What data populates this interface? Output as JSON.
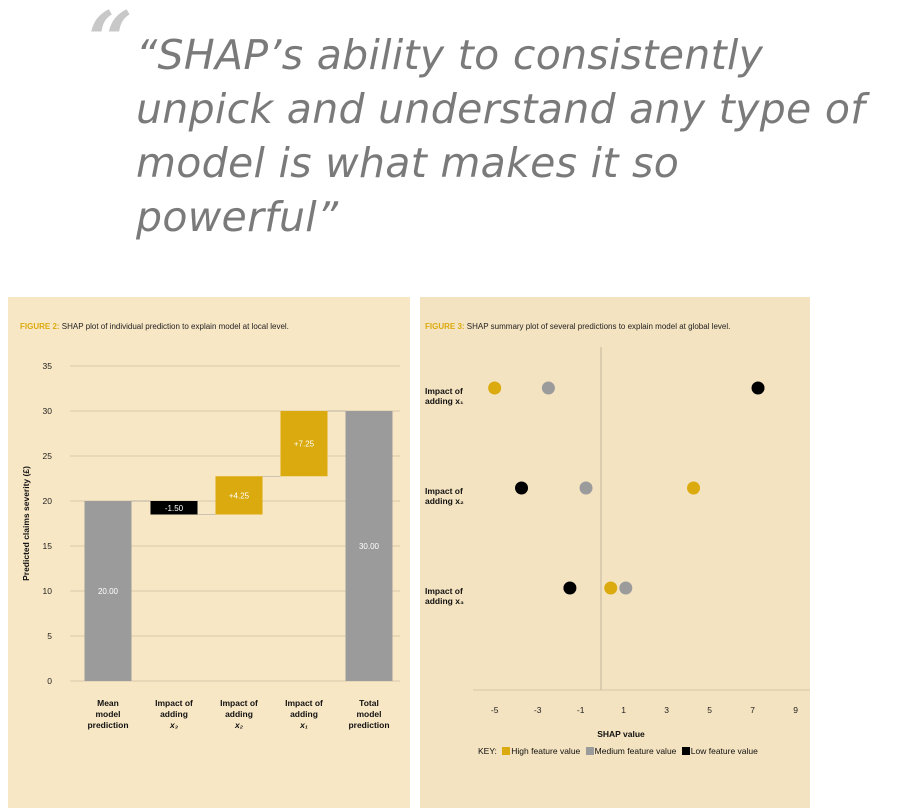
{
  "quote": {
    "mark": "“",
    "lines": [
      "“SHAP’s ability to consistently",
      "unpick and understand any type of",
      "model is what makes it so",
      "powerful”"
    ]
  },
  "colors": {
    "panel_bg": "#f8e7c5",
    "high": "#dbaa0e",
    "medium": "#9b9b9b",
    "low": "#000000",
    "figure_label": "#dbaa0e"
  },
  "figure2": {
    "label": "FIGURE 2:",
    "caption": "SHAP plot of individual prediction to explain model at local level."
  },
  "figure3": {
    "label": "FIGURE 3:",
    "caption": "SHAP summary plot of several predictions to explain model at global level."
  },
  "key": {
    "title": "KEY:",
    "items": [
      "High feature value",
      "Medium feature value",
      "Low feature value"
    ]
  },
  "chart_data": [
    {
      "type": "bar",
      "subtype": "waterfall",
      "ylabel": "Predicted claims severity (£)",
      "ylim": [
        0,
        35
      ],
      "yticks": [
        "0",
        "5",
        "10",
        "15",
        "20",
        "25",
        "30",
        "35"
      ],
      "categories": [
        [
          "Mean",
          "model",
          "prediction"
        ],
        [
          "Impact of",
          "adding",
          "x₃"
        ],
        [
          "Impact of",
          "adding",
          "x₂"
        ],
        [
          "Impact of",
          "adding",
          "x₁"
        ],
        [
          "Total",
          "model",
          "prediction"
        ]
      ],
      "bars": [
        {
          "start": 0,
          "end": 20,
          "label": "20.00",
          "color": "medium"
        },
        {
          "start": 20,
          "end": 18.5,
          "label": "-1.50",
          "color": "low"
        },
        {
          "start": 18.5,
          "end": 22.75,
          "label": "+4.25",
          "color": "high"
        },
        {
          "start": 22.75,
          "end": 30,
          "label": "+7.25",
          "color": "high"
        },
        {
          "start": 0,
          "end": 30,
          "label": "30.00",
          "color": "medium"
        }
      ]
    },
    {
      "type": "scatter",
      "xlabel": "SHAP value",
      "xlim": [
        -6,
        10
      ],
      "xticks": [
        -5,
        -3,
        -1,
        1,
        3,
        5,
        7,
        9
      ],
      "rows": [
        {
          "label": [
            "Impact of",
            "adding x₁"
          ],
          "points": [
            {
              "x": -5,
              "value": "high"
            },
            {
              "x": -2.5,
              "value": "medium"
            },
            {
              "x": 7.25,
              "value": "low"
            }
          ]
        },
        {
          "label": [
            "Impact of",
            "adding x₂"
          ],
          "points": [
            {
              "x": -3.75,
              "value": "low"
            },
            {
              "x": -0.75,
              "value": "medium"
            },
            {
              "x": 4.25,
              "value": "high"
            }
          ]
        },
        {
          "label": [
            "Impact of",
            "adding x₃"
          ],
          "points": [
            {
              "x": -1.5,
              "value": "low"
            },
            {
              "x": 0.4,
              "value": "high"
            },
            {
              "x": 1.1,
              "value": "medium"
            }
          ]
        }
      ]
    }
  ]
}
